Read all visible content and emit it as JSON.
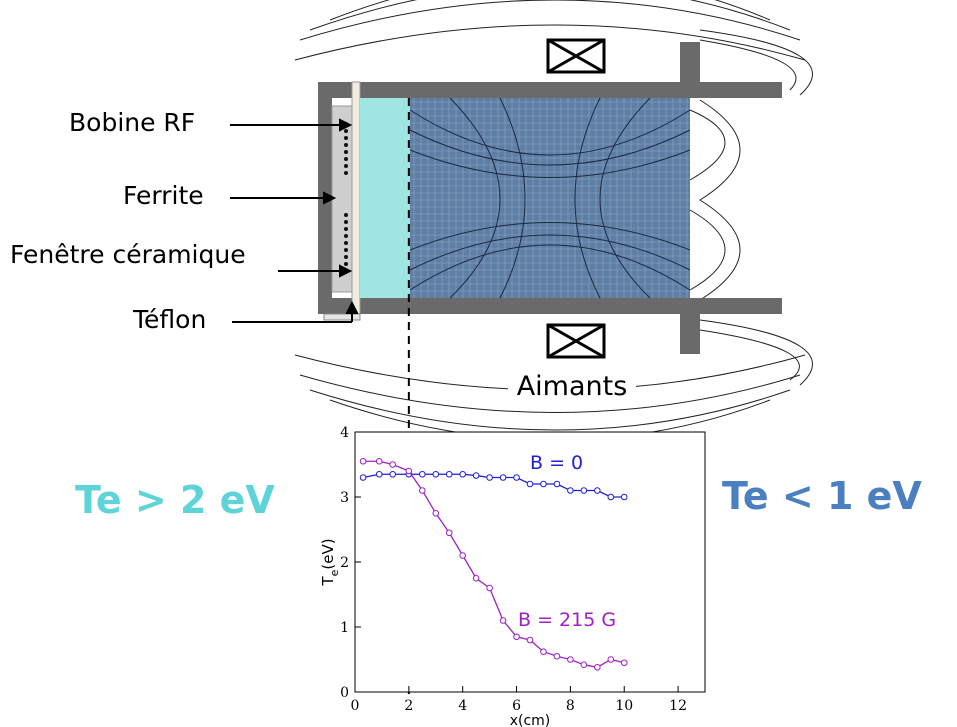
{
  "labels": {
    "bobine_rf": "Bobine RF",
    "ferrite": "Ferrite",
    "fenetre": "Fenêtre céramique",
    "teflon": "Téflon",
    "aimants": "Aimants"
  },
  "regions": {
    "left": "Te > 2 eV",
    "right": "Te < 1 eV",
    "left_color": "#5ed4d8",
    "right_color": "#4a7fc1"
  },
  "chart_data": {
    "type": "line",
    "x": [],
    "xlabel": "x(cm)",
    "ylabel_main": "T",
    "ylabel_sub": "e",
    "ylabel_unit": "(eV)",
    "xlim": [
      0,
      13
    ],
    "ylim": [
      0,
      4
    ],
    "xticks": [
      "0",
      "2",
      "4",
      "6",
      "8",
      "10",
      "12"
    ],
    "yticks": [
      "0",
      "1",
      "2",
      "3",
      "4"
    ],
    "dashed_line_x": 2,
    "series": [
      {
        "name": "B = 0",
        "color": "#1f1fd6",
        "x": [
          0.3,
          0.9,
          1.4,
          2.0,
          2.5,
          3.0,
          3.5,
          4.0,
          4.5,
          5.0,
          5.5,
          6.0,
          6.5,
          7.0,
          7.5,
          8.0,
          8.5,
          9.0,
          9.5,
          10.0
        ],
        "y": [
          3.3,
          3.35,
          3.35,
          3.35,
          3.35,
          3.35,
          3.35,
          3.35,
          3.33,
          3.3,
          3.3,
          3.3,
          3.2,
          3.2,
          3.2,
          3.1,
          3.1,
          3.1,
          3.0,
          3.0
        ]
      },
      {
        "name": "B = 215 G",
        "color": "#a020c8",
        "x": [
          0.3,
          0.9,
          1.4,
          2.0,
          2.5,
          3.0,
          3.5,
          4.0,
          4.5,
          5.0,
          5.5,
          6.0,
          6.5,
          7.0,
          7.5,
          8.0,
          8.5,
          9.0,
          9.5,
          10.0
        ],
        "y": [
          3.55,
          3.55,
          3.5,
          3.4,
          3.1,
          2.75,
          2.45,
          2.1,
          1.75,
          1.6,
          1.1,
          0.85,
          0.8,
          0.62,
          0.55,
          0.5,
          0.42,
          0.38,
          0.5,
          0.45
        ]
      }
    ]
  }
}
